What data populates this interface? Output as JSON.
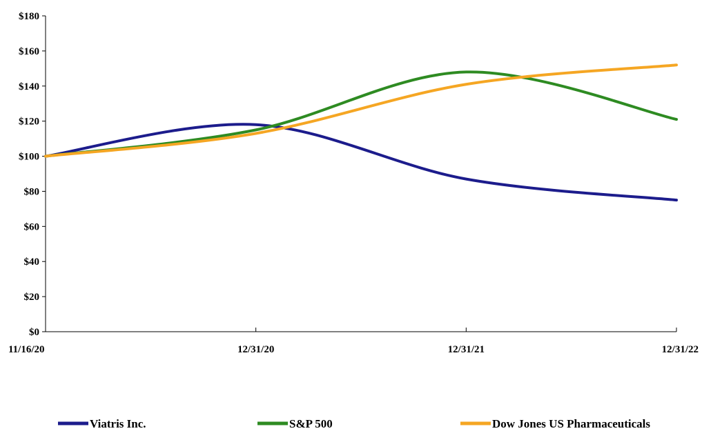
{
  "chart_data": {
    "type": "line",
    "title": "",
    "xlabel": "",
    "ylabel": "",
    "categories": [
      "11/16/20",
      "12/31/20",
      "12/31/21",
      "12/31/22"
    ],
    "y_tick_labels": [
      "$0",
      "$20",
      "$40",
      "$60",
      "$80",
      "$100",
      "$120",
      "$140",
      "$160",
      "$180"
    ],
    "ylim": [
      0,
      180
    ],
    "grid": false,
    "legend_position": "bottom",
    "series": [
      {
        "name": "Viatris Inc.",
        "color": "#1c1c8c",
        "values": [
          100,
          118,
          87,
          75
        ]
      },
      {
        "name": "S&P 500",
        "color": "#2e8b22",
        "values": [
          100,
          115,
          148,
          121
        ]
      },
      {
        "name": "Dow Jones US Pharmaceuticals",
        "color": "#f5a623",
        "values": [
          100,
          113,
          141,
          152
        ]
      }
    ]
  }
}
